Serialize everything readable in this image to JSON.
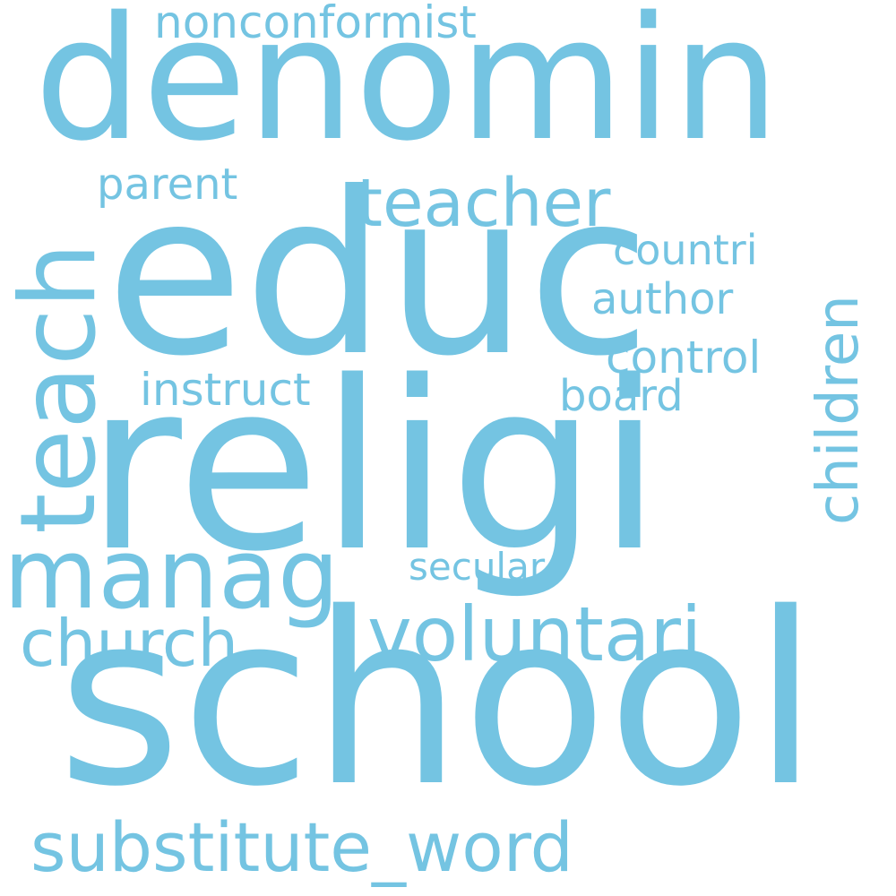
{
  "cloud": {
    "color": "#74c4e2",
    "background": "#ffffff",
    "words": {
      "denomin": "denomin",
      "educ": "educ",
      "religi": "religi",
      "school": "school",
      "nonconformist": "nonconformist",
      "parent": "parent",
      "teacher": "teacher",
      "countri": "countri",
      "author": "author",
      "control": "control",
      "instruct": "instruct",
      "board": "board",
      "manag": "manag",
      "secular": "secular",
      "voluntari": "voluntari",
      "church": "church",
      "substitute_word": "substitute_word",
      "teach": "teach",
      "children": "children"
    }
  }
}
